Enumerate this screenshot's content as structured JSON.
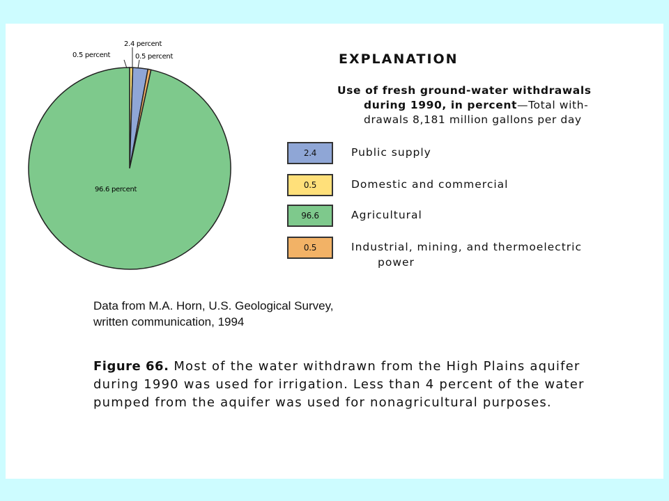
{
  "chart_data": {
    "type": "pie",
    "title": "EXPLANATION",
    "description": {
      "lead": "Use of fresh ground-water withdrawals",
      "lead2": "during 1990, in percent",
      "rest": "—Total with-",
      "line3": "drawals 8,181 million gallons per day"
    },
    "categories": [
      "Public supply",
      "Domestic and commercial",
      "Agricultural",
      "Industrial, mining, and thermoelectric power"
    ],
    "values": [
      2.4,
      0.5,
      96.6,
      0.5
    ],
    "box_labels": [
      "2.4",
      "0.5",
      "96.6",
      "0.5"
    ],
    "slice_labels": [
      "2.4 percent",
      "0.5 percent",
      "96.6 percent",
      "0.5 percent"
    ],
    "colors": [
      "#8fa6d6",
      "#ffe07a",
      "#7ec98c",
      "#f2b266"
    ],
    "legend_placement": "right"
  },
  "legend": {
    "industrial_line1": "Industrial, mining, and thermoelectric",
    "industrial_line2": "power"
  },
  "source": {
    "line1": "Data from M.A. Horn, U.S. Geological Survey,",
    "line2": "written communication, 1994"
  },
  "caption": {
    "figure": "Figure 66.",
    "text": "Most of the water withdrawn from the High Plains aquifer during 1990 was used for irrigation. Less than 4 percent of the water pumped from the aquifer was used for nonagricultural purposes."
  }
}
